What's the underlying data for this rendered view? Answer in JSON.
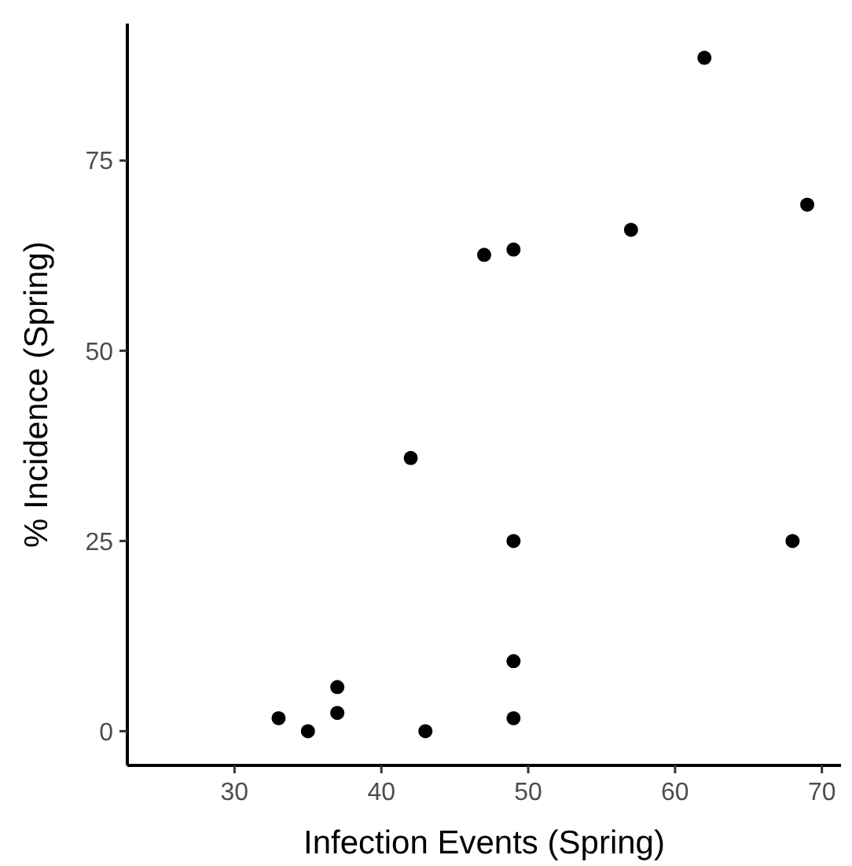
{
  "chart_data": {
    "type": "scatter",
    "xlabel": "Infection Events (Spring)",
    "ylabel": "% Incidence (Spring)",
    "x": [
      47,
      49,
      57,
      62,
      69,
      42,
      49,
      68,
      49,
      37,
      37,
      33,
      35,
      43,
      49
    ],
    "series": [
      {
        "color": "#000000",
        "values": [
          62.6,
          63.3,
          65.9,
          88.5,
          69.2,
          35.9,
          25,
          25,
          9.2,
          5.8,
          2.4,
          1.7,
          0,
          0,
          1.7
        ]
      }
    ],
    "xlim": [
      22.7,
      71.3
    ],
    "xticks": [
      30,
      40,
      50,
      60,
      70
    ],
    "ylim": [
      -4.5,
      93
    ],
    "yticks": [
      0,
      25,
      50,
      75
    ],
    "grid": false,
    "marker": "circle"
  }
}
